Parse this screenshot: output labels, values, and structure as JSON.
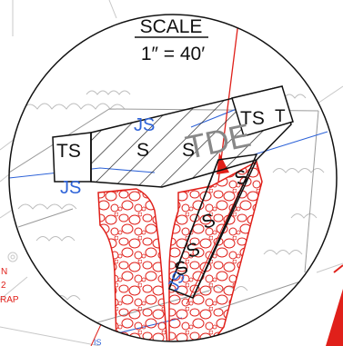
{
  "scale": {
    "title": "SCALE",
    "ratio": "1″ = 40′"
  },
  "labels": {
    "ts_left": "TS",
    "ts_right": "TS",
    "t_right": "T",
    "s_marks": [
      "S",
      "S",
      "S",
      "S",
      "S",
      "S"
    ],
    "js_top": "JS",
    "js_left": "JS",
    "js_lower": "JS",
    "tde": "TDE",
    "is_bottom": "IS",
    "edge_a": "N",
    "edge_b": "2",
    "edge_c": "RAP"
  },
  "colors": {
    "linework": "#111111",
    "water_line": "#2e63d8",
    "riprap": "#e0201a",
    "trees": "#bdbdbd",
    "tde_text": "#888888"
  }
}
